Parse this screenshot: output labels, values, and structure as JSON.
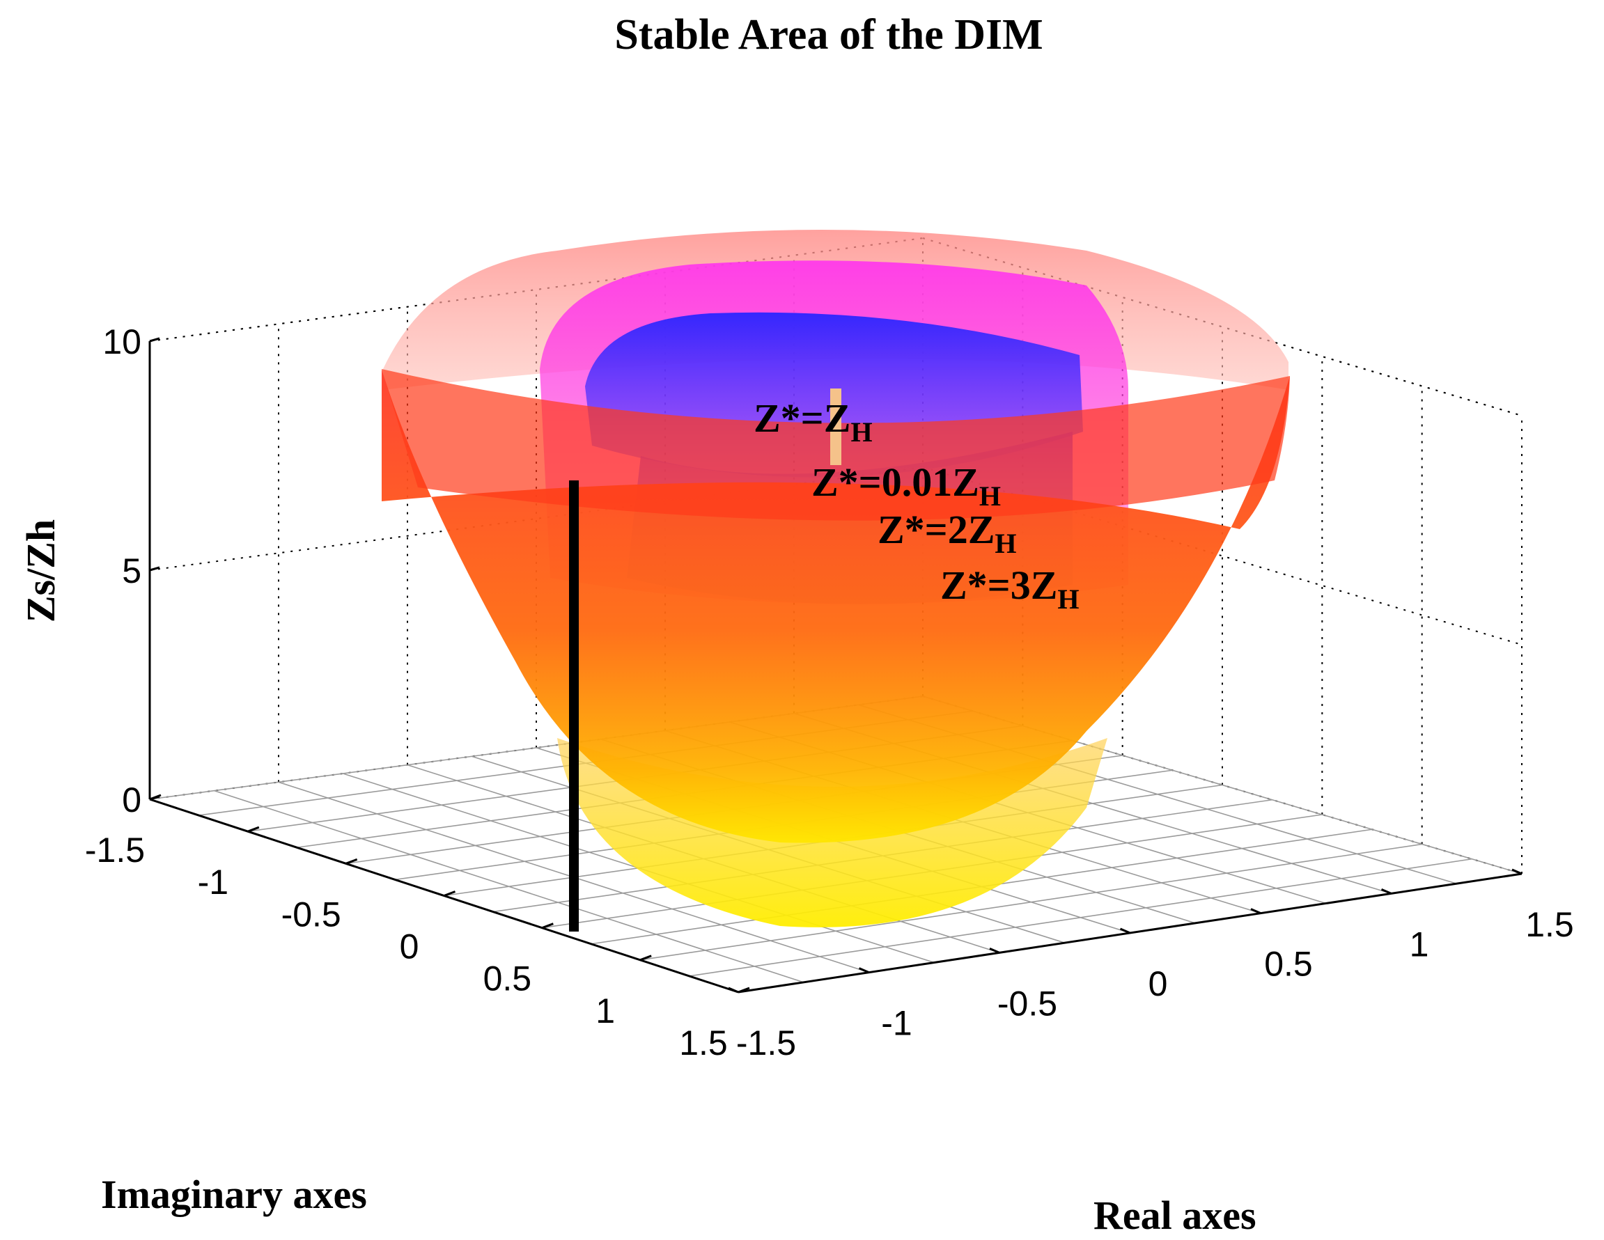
{
  "chart_data": {
    "type": "surface3d",
    "title": "Stable Area of the DIM",
    "xlabel": "Real axes",
    "ylabel": "Imaginary axes",
    "zlabel": "Zs/Zh",
    "xlim": [
      -1.5,
      1.5
    ],
    "ylim": [
      -1.5,
      1.5
    ],
    "zlim": [
      0,
      10
    ],
    "x_ticks": [
      "-1.5",
      "-1",
      "-0.5",
      "0",
      "0.5",
      "1",
      "1.5"
    ],
    "y_ticks": [
      "-1.5",
      "-1",
      "-0.5",
      "0",
      "0.5",
      "1",
      "1.5"
    ],
    "z_ticks": [
      "0",
      "5",
      "10"
    ],
    "grid": true,
    "series": [
      {
        "name_main": "Z*=",
        "name_sub": "H",
        "name_prefix": "Z",
        "radius": 0.35,
        "color": "#f5c28a"
      },
      {
        "name_main": "Z*=0.01Z",
        "name_sub": "H",
        "radius": 0.78,
        "color": "#1a22ff"
      },
      {
        "name_main": "Z*=2Z",
        "name_sub": "H",
        "radius": 0.95,
        "color": "#ff22ee"
      },
      {
        "name_main": "Z*=3Z",
        "name_sub": "H",
        "radius": 1.45,
        "color": "#ff2a1a"
      }
    ]
  }
}
